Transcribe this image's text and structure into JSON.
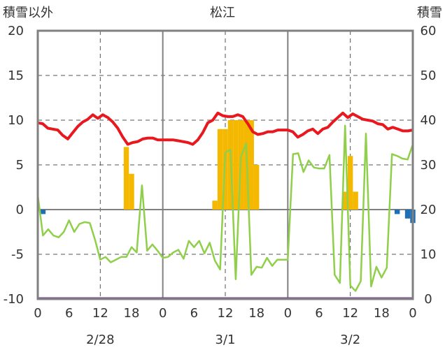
{
  "chart_data": {
    "type": "line",
    "title": "松江",
    "ylabel_left": "積雪以外",
    "ylabel_right": "積雪",
    "ylim_left": [
      -10,
      20
    ],
    "ylim_right": [
      0,
      60
    ],
    "yticks_left": [
      "20",
      "15",
      "10",
      "5",
      "0",
      "-5",
      "-10"
    ],
    "yticks_right": [
      "60",
      "50",
      "40",
      "30",
      "20",
      "10",
      "0"
    ],
    "xticks": [
      "0",
      "6",
      "12",
      "18",
      "0",
      "6",
      "12",
      "18",
      "0",
      "6",
      "12",
      "18",
      "0"
    ],
    "date_labels": [
      "2/28",
      "3/1",
      "3/2"
    ],
    "grid": "dashed-vertical-at-12h, dashed-horizontal",
    "colors": {
      "temperature": "#e8181e",
      "humidity_line": "#8fcf4a",
      "snow_positive": "#f5b800",
      "snow_negative": "#1f6fb5",
      "bottom_line": "#7a3fa0",
      "frame": "#808080"
    },
    "series": [
      {
        "name": "",
        "color": "#e8181e",
        "values": [
          9.7,
          9.6,
          9.1,
          9.0,
          8.9,
          8.3,
          7.9,
          8.6,
          9.3,
          9.8,
          10.1,
          10.6,
          10.2,
          10.6,
          10.3,
          9.8,
          9.1,
          8.1,
          7.3,
          7.5,
          7.6,
          7.9,
          8.0,
          8.0,
          7.8,
          7.8,
          7.8,
          7.8,
          7.7,
          7.6,
          7.5,
          7.3,
          7.8,
          8.6,
          9.7,
          10.0,
          10.8,
          10.5,
          10.4,
          10.4,
          10.6,
          10.4,
          9.6,
          8.7,
          8.4,
          8.5,
          8.7,
          8.7,
          8.9,
          8.9,
          8.9,
          8.7,
          8.1,
          8.4,
          8.8,
          9.0,
          8.5,
          9.0,
          9.2,
          9.8,
          10.3,
          10.8,
          10.3,
          10.7,
          10.4,
          10.1,
          10.0,
          9.9,
          9.6,
          9.5,
          9.0,
          9.2,
          9.0,
          8.8,
          8.8,
          8.9
        ]
      },
      {
        "name": "",
        "color": "#8fcf4a",
        "values": [
          1.6,
          -2.9,
          -2.2,
          -2.9,
          -3.1,
          -2.5,
          -1.2,
          -2.5,
          -1.6,
          -1.4,
          -1.5,
          -3.4,
          -5.6,
          -5.3,
          -5.9,
          -5.6,
          -5.3,
          -5.3,
          -4.2,
          -4.8,
          2.7,
          -4.6,
          -3.9,
          -4.6,
          -5.4,
          -5.3,
          -4.8,
          -4.5,
          -5.5,
          -3.5,
          -4.2,
          -3.5,
          -4.9,
          -3.7,
          -5.7,
          -6.7,
          6.4,
          6.7,
          -7.8,
          5.9,
          7.4,
          -7.3,
          -6.4,
          -6.5,
          -5.4,
          -6.3,
          -5.6,
          -5.6,
          -5.6,
          6.2,
          6.3,
          4.2,
          5.5,
          4.7,
          4.6,
          4.6,
          6.1,
          -7.3,
          -8.2,
          9.4,
          -8.5,
          -9.1,
          -8.0,
          8.5,
          -8.6,
          -6.4,
          -7.6,
          -6.5,
          6.2,
          6.0,
          5.7,
          5.6,
          7.3
        ]
      }
    ],
    "snow_bars": [
      {
        "hour": 17,
        "value": 7.0
      },
      {
        "hour": 18,
        "value": 4.0
      },
      {
        "hour": 34,
        "value": 1.0
      },
      {
        "hour": 35,
        "value": 9.0
      },
      {
        "hour": 36,
        "value": 9.0
      },
      {
        "hour": 37,
        "value": 10.0
      },
      {
        "hour": 38,
        "value": 10.0
      },
      {
        "hour": 39,
        "value": 10.0
      },
      {
        "hour": 40,
        "value": 10.0
      },
      {
        "hour": 41,
        "value": 10.0
      },
      {
        "hour": 42,
        "value": 5.0
      },
      {
        "hour": 59,
        "value": 2.0
      },
      {
        "hour": 60,
        "value": 6.0
      },
      {
        "hour": 61,
        "value": 2.0
      }
    ],
    "neg_bars": [
      {
        "hour": 1,
        "value": -0.5
      },
      {
        "hour": 69,
        "value": -0.5
      },
      {
        "hour": 71,
        "value": -1.0
      },
      {
        "hour": 72,
        "value": -1.5
      }
    ]
  }
}
